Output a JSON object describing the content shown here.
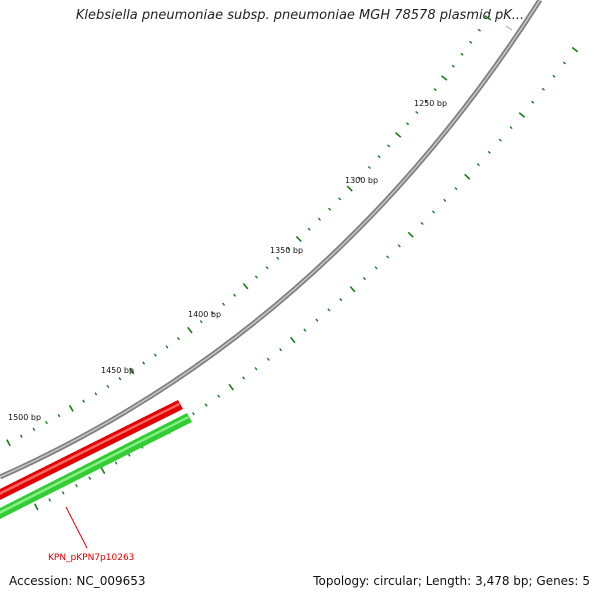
{
  "title": "Klebsiella pneumoniae subsp. pneumoniae MGH 78578 plasmid pK...",
  "footer": {
    "accession_label": "Accession:",
    "accession": "NC_009653",
    "topology_label": "Topology:",
    "topology": "circular",
    "length_label": "Length:",
    "length": "3,478 bp",
    "genes_label": "Genes:",
    "genes": "5"
  },
  "ruler": {
    "labels": [
      "1250 bp",
      "1300 bp",
      "1350 bp",
      "1400 bp",
      "1450 bp",
      "1500 bp"
    ]
  },
  "features": [
    {
      "name": "KPN_pKPN7p10263",
      "color": "#e00000",
      "track": "plus"
    },
    {
      "name": "",
      "color": "#33cc33",
      "track": "minus"
    }
  ],
  "colors": {
    "backbone": "#808080",
    "tick": "#1a7a1a",
    "gene_plus": "#e00000",
    "gene_minus": "#33cc33",
    "label_red": "#e00000"
  }
}
